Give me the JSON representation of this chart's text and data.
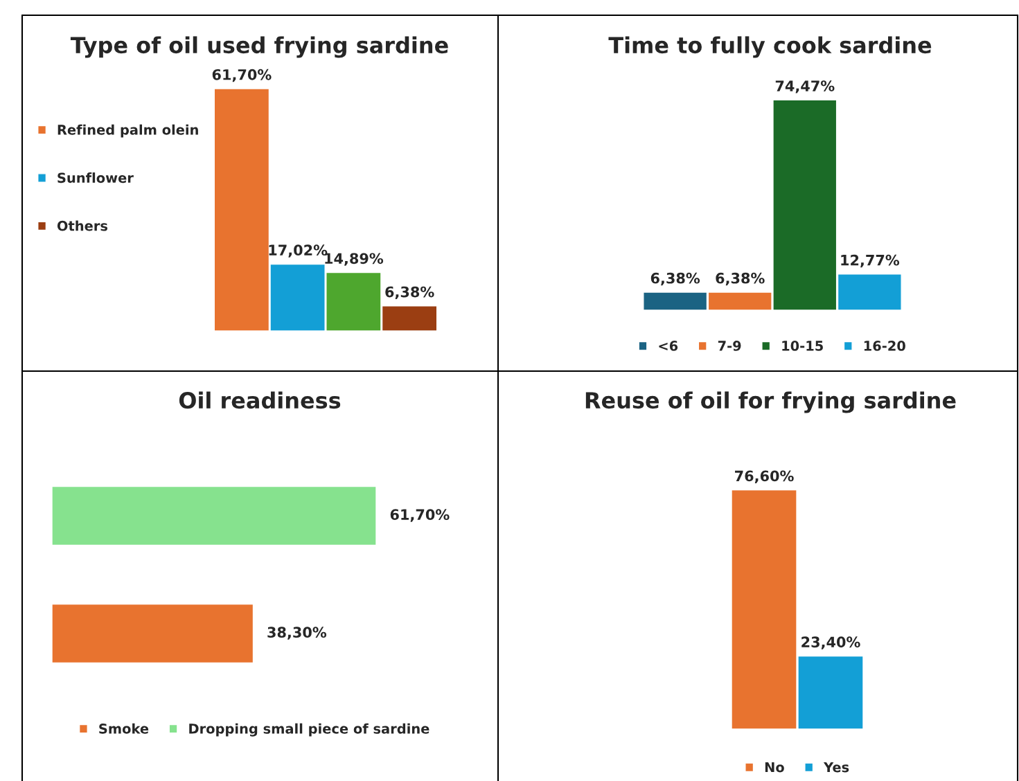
{
  "chart_data": [
    {
      "type": "bar",
      "title": "Type of oil used frying sardine",
      "categories": [
        null
      ],
      "legend": "left",
      "series": [
        {
          "name": "Refined palm olein",
          "color": "#e8732f",
          "values": [
            61.7
          ],
          "value_labels": [
            "61,70%"
          ]
        },
        {
          "name": "Sunflower",
          "color": "#139fd6",
          "values": [
            17.02
          ],
          "value_labels": [
            "17,02%"
          ]
        },
        {
          "color": "#4ea72e",
          "values": [
            14.89
          ],
          "value_labels": [
            "14,89%"
          ]
        },
        {
          "name": "Others",
          "color": "#9b3e12",
          "values": [
            6.38
          ],
          "value_labels": [
            "6,38%"
          ]
        }
      ]
    },
    {
      "type": "bar",
      "title": "Time to fully cook sardine",
      "categories": [
        null
      ],
      "legend": "bottom",
      "series": [
        {
          "name": "<6",
          "color": "#1b6383",
          "values": [
            6.38
          ],
          "value_labels": [
            "6,38%"
          ]
        },
        {
          "name": "7-9",
          "color": "#e8732f",
          "values": [
            6.38
          ],
          "value_labels": [
            "6,38%"
          ]
        },
        {
          "name": "10-15",
          "color": "#1b6b27",
          "values": [
            74.47
          ],
          "value_labels": [
            "74,47%"
          ]
        },
        {
          "name": "16-20",
          "color": "#139fd6",
          "values": [
            12.77
          ],
          "value_labels": [
            "12,77%"
          ]
        }
      ]
    },
    {
      "type": "bar",
      "orientation": "horizontal",
      "title": "Oil readiness",
      "categories": [
        null
      ],
      "legend": "bottom",
      "series": [
        {
          "name": "Smoke",
          "color": "#e8732f",
          "values": [
            38.3
          ],
          "value_labels": [
            "38,30%"
          ]
        },
        {
          "name": "Dropping small piece of sardine",
          "color": "#86e28e",
          "values": [
            61.7
          ],
          "value_labels": [
            "61,70%"
          ]
        }
      ]
    },
    {
      "type": "bar",
      "title": "Reuse of oil for frying sardine",
      "categories": [
        null
      ],
      "legend": "bottom",
      "series": [
        {
          "name": "No",
          "color": "#e8732f",
          "values": [
            76.6
          ],
          "value_labels": [
            "76,60%"
          ]
        },
        {
          "name": "Yes",
          "color": "#139fd6",
          "values": [
            23.4
          ],
          "value_labels": [
            "23,40%"
          ]
        }
      ]
    }
  ]
}
